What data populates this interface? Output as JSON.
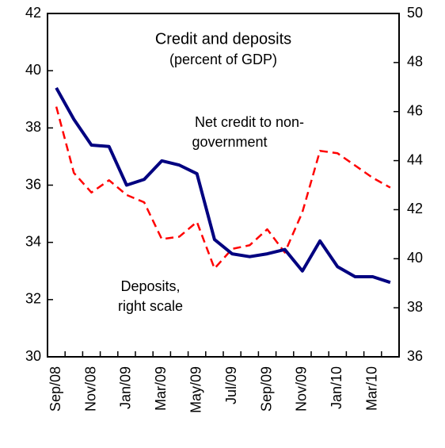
{
  "chart_data": {
    "type": "line",
    "title": "Credit and deposits",
    "subtitle": "(percent of GDP)",
    "annotations": [
      "Net credit to non-",
      "government",
      "Deposits,",
      "right scale"
    ],
    "categories": [
      "Sep/08",
      null,
      "Nov/08",
      null,
      "Jan/09",
      null,
      "Mar/09",
      null,
      "May/09",
      null,
      "Jul/09",
      null,
      "Sep/09",
      null,
      "Nov/09",
      null,
      "Jan/10",
      null,
      "Mar/10",
      null
    ],
    "series": [
      {
        "name": "Net credit to non-government",
        "color": "#000080",
        "values": [
          39.4,
          38.3,
          37.4,
          37.35,
          36.0,
          36.2,
          36.85,
          36.7,
          36.4,
          34.1,
          33.6,
          33.5,
          33.6,
          33.75,
          33.0,
          34.05,
          33.15,
          32.8,
          32.8,
          32.6
        ]
      },
      {
        "name": "Deposits, right scale",
        "color": "#ff0000",
        "axis": "y2",
        "values": [
          46.2,
          43.5,
          42.7,
          43.2,
          42.6,
          42.3,
          40.8,
          40.9,
          41.5,
          39.6,
          40.4,
          40.55,
          41.2,
          40.25,
          41.9,
          44.4,
          44.3,
          43.8,
          43.3,
          42.9
        ]
      }
    ],
    "ylim": [
      30,
      42
    ],
    "yticks": [
      30,
      32,
      34,
      36,
      38,
      40,
      42
    ],
    "y2lim": [
      36,
      50
    ],
    "y2ticks": [
      36,
      38,
      40,
      42,
      44,
      46,
      48,
      50
    ]
  }
}
